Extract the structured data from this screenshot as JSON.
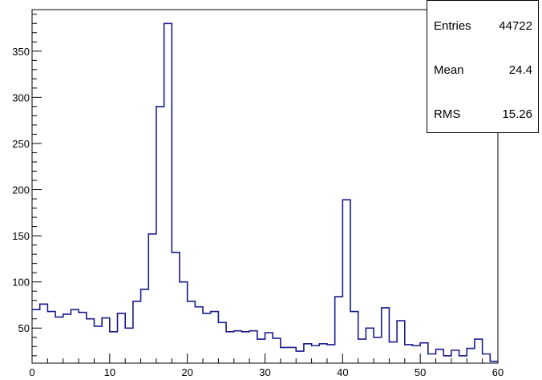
{
  "chart_data": {
    "type": "histogram",
    "title": "",
    "xlabel": "",
    "ylabel": "",
    "xlim": [
      0,
      60
    ],
    "ylim": [
      12,
      395
    ],
    "bin_width": 1,
    "x_ticks": [
      0,
      10,
      20,
      30,
      40,
      50,
      60
    ],
    "y_ticks": [
      50,
      100,
      150,
      200,
      250,
      300,
      350
    ],
    "line_color": "#1a1a8c",
    "grid": false,
    "values": [
      70,
      76,
      68,
      62,
      65,
      70,
      67,
      60,
      52,
      61,
      46,
      66,
      50,
      79,
      92,
      152,
      290,
      380,
      132,
      100,
      79,
      73,
      66,
      68,
      56,
      46,
      47,
      46,
      47,
      38,
      45,
      39,
      29,
      29,
      25,
      33,
      31,
      33,
      32,
      84,
      189,
      68,
      38,
      50,
      40,
      72,
      35,
      58,
      32,
      31,
      34,
      22,
      27,
      20,
      26,
      20,
      28,
      38,
      22,
      14
    ]
  },
  "stats": {
    "entries_label": "Entries",
    "entries_value": "44722",
    "mean_label": "Mean",
    "mean_value": "24.4",
    "rms_label": "RMS",
    "rms_value": "15.26"
  }
}
